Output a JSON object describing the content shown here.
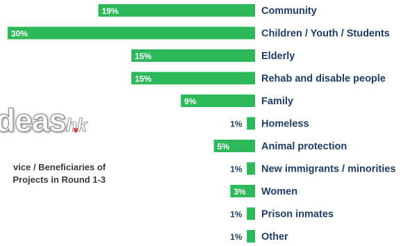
{
  "logo": {
    "word": "deas",
    "suffix": "hk"
  },
  "caption": {
    "line1": "vice / Beneficiaries of",
    "line2": "Projects in Round 1-3"
  },
  "colors": {
    "bar": "#2db85a",
    "category_text": "#1e3c64",
    "label_inside": "#ffffff",
    "label_outside": "#1e3c64"
  },
  "chart_data": {
    "type": "bar",
    "orientation": "horizontal",
    "unit": "%",
    "categories": [
      "Community",
      "Children / Youth / Students",
      "Elderly",
      "Rehab and disable people",
      "Family",
      "Homeless",
      "Animal protection",
      "New immigrants / minorities",
      "Women",
      "Prison inmates",
      "Other"
    ],
    "values": [
      19,
      30,
      15,
      15,
      9,
      1,
      5,
      1,
      3,
      1,
      1
    ],
    "labels": [
      "19%",
      "30%",
      "15%",
      "15%",
      "9%",
      "1%",
      "5%",
      "1%",
      "3%",
      "1%",
      "1%"
    ],
    "grid": false,
    "legend": "none"
  }
}
